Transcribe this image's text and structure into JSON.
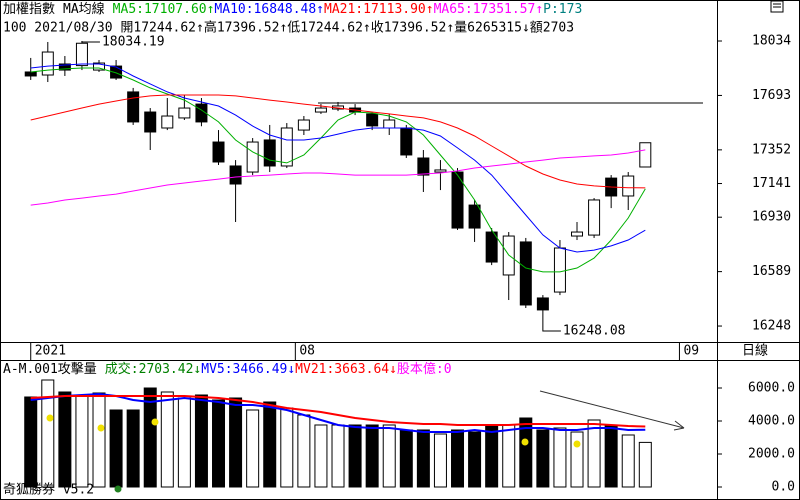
{
  "chart_data": [
    {
      "type": "candlestick",
      "title": "加權指數",
      "subtitle": "MA均線",
      "info": "100 2021/08/30 開17244.62↑高17396.52↑低17244.62↑收17396.52↑量6265315↓額2703",
      "extra_label": "P:173",
      "period_label": "日線",
      "open": [
        17840,
        17821,
        17890,
        17880,
        17852,
        17877,
        17715,
        17589,
        17489,
        17552,
        17639,
        17401,
        17251,
        17213,
        17414,
        17251,
        17476,
        17589,
        17608,
        17614,
        17577,
        17489,
        17489,
        17301,
        17213,
        17213,
        17006,
        16837,
        16568,
        16775,
        16424,
        16461,
        16812,
        16818,
        17175,
        17063,
        17244.62
      ],
      "high": [
        17928,
        18028,
        17940,
        18034.19,
        17915,
        17915,
        17740,
        17614,
        17677,
        17696,
        17677,
        17476,
        17288,
        17426,
        17508,
        17520,
        17564,
        17639,
        17652,
        17639,
        17589,
        17577,
        17508,
        17351,
        17288,
        17238,
        17038,
        16862,
        16837,
        16800,
        16442,
        16787,
        16900,
        17050,
        17194,
        17213,
        17396.52
      ],
      "low": [
        17790,
        17777,
        17815,
        17852,
        17840,
        17790,
        17508,
        17351,
        17476,
        17539,
        17500,
        17257,
        16900,
        17194,
        17213,
        17238,
        17445,
        17577,
        17595,
        17570,
        17476,
        17445,
        17301,
        17088,
        17100,
        16850,
        16775,
        16630,
        16411,
        16361,
        16248.08,
        16442,
        16787,
        16800,
        16987,
        16975,
        17244.62
      ],
      "close": [
        17815,
        17965,
        17852,
        18020,
        17896,
        17802,
        17527,
        17464,
        17564,
        17614,
        17527,
        17276,
        17138,
        17401,
        17251,
        17489,
        17539,
        17614,
        17627,
        17589,
        17502,
        17539,
        17320,
        17194,
        17226,
        16862,
        16862,
        16649,
        16812,
        16380,
        16349,
        16737,
        16837,
        17038,
        17063,
        17188,
        17396.52
      ],
      "series": [
        {
          "name": "MA5:17107.60↑",
          "color": "#00b000",
          "values": [
            17840,
            17852,
            17859,
            17865,
            17865,
            17834,
            17790,
            17740,
            17702,
            17664,
            17602,
            17527,
            17414,
            17339,
            17288,
            17270,
            17320,
            17426,
            17539,
            17589,
            17583,
            17564,
            17527,
            17445,
            17320,
            17194,
            17038,
            16850,
            16693,
            16612,
            16587,
            16587,
            16612,
            16674,
            16787,
            16925,
            17107.6
          ]
        },
        {
          "name": "MA10:16848.48↑",
          "color": "#0000ff",
          "values": [
            17865,
            17877,
            17884,
            17890,
            17890,
            17871,
            17815,
            17765,
            17715,
            17677,
            17652,
            17627,
            17570,
            17501,
            17445,
            17414,
            17414,
            17426,
            17451,
            17476,
            17489,
            17489,
            17489,
            17476,
            17439,
            17364,
            17288,
            17194,
            17069,
            16944,
            16819,
            16737,
            16712,
            16724,
            16750,
            16787,
            16848.48
          ]
        },
        {
          "name": "MA21:17113.90↑",
          "color": "#ff0000",
          "values": [
            17539,
            17564,
            17589,
            17614,
            17639,
            17658,
            17677,
            17690,
            17696,
            17696,
            17696,
            17696,
            17690,
            17677,
            17664,
            17652,
            17639,
            17627,
            17614,
            17602,
            17589,
            17577,
            17564,
            17552,
            17527,
            17489,
            17439,
            17376,
            17314,
            17251,
            17201,
            17163,
            17138,
            17126,
            17119,
            17115,
            17113.9
          ]
        },
        {
          "name": "MA65:17351.57↑",
          "color": "#ff00ff",
          "values": [
            17006,
            17019,
            17038,
            17050,
            17063,
            17075,
            17094,
            17113,
            17132,
            17144,
            17157,
            17169,
            17182,
            17188,
            17194,
            17201,
            17207,
            17207,
            17201,
            17194,
            17194,
            17194,
            17194,
            17201,
            17207,
            17220,
            17238,
            17251,
            17263,
            17276,
            17288,
            17301,
            17307,
            17314,
            17320,
            17332,
            17351.57
          ]
        }
      ],
      "annotations": [
        {
          "x": 3,
          "y": 18034.19
        },
        {
          "x": 30,
          "y": 16248.08
        }
      ],
      "ylim": [
        16148,
        18291
      ],
      "yticks": [
        16248,
        16589,
        16930,
        17141,
        17352,
        17693,
        18034
      ],
      "xlim": [
        -1.8,
        40.2
      ],
      "xticks": [
        {
          "value": 0,
          "label": "2021"
        },
        {
          "value": 15.5,
          "label": "08"
        },
        {
          "value": 38,
          "label": "09"
        }
      ]
    },
    {
      "type": "volume",
      "title": "A-M.001攻擊量",
      "extra_label": "股本億:0",
      "footer": "奇狐勝券 v5.2",
      "series": [
        {
          "name": "成交:2703.42↓",
          "color": "#008000",
          "values": [
            5455,
            6485,
            5758,
            5576,
            5697,
            4667,
            4667,
            6000,
            5758,
            5394,
            5576,
            5273,
            5394,
            4667,
            5152,
            4788,
            4364,
            3758,
            3758,
            3758,
            3758,
            3758,
            3455,
            3455,
            3212,
            3455,
            3333,
            3758,
            3758,
            4182,
            3455,
            3576,
            3333,
            4061,
            3758,
            3152,
            2703.42
          ]
        },
        {
          "name": "MV5:3466.49↓",
          "color": "#0000ff",
          "values": [
            5273,
            5394,
            5515,
            5576,
            5636,
            5515,
            5273,
            5152,
            5273,
            5394,
            5273,
            5152,
            4970,
            4970,
            4848,
            4667,
            4364,
            4061,
            3758,
            3636,
            3576,
            3576,
            3455,
            3333,
            3333,
            3333,
            3455,
            3333,
            3455,
            3576,
            3576,
            3455,
            3455,
            3576,
            3576,
            3455,
            3466.49
          ]
        },
        {
          "name": "MV21:3663.64↓",
          "color": "#ff0000",
          "values": [
            5394,
            5455,
            5515,
            5515,
            5515,
            5515,
            5515,
            5515,
            5515,
            5515,
            5455,
            5394,
            5273,
            5152,
            4970,
            4788,
            4667,
            4545,
            4364,
            4182,
            4061,
            3939,
            3879,
            3818,
            3818,
            3758,
            3758,
            3758,
            3758,
            3818,
            3818,
            3818,
            3818,
            3818,
            3758,
            3697,
            3663.64
          ]
        }
      ],
      "ylim": [
        -667,
        7576
      ],
      "yticks": [
        {
          "value": 0,
          "label": "0.0"
        },
        {
          "value": 2000,
          "label": "2000.0"
        },
        {
          "value": 4000,
          "label": "4000.0"
        },
        {
          "value": 6000,
          "label": "6000.0"
        }
      ]
    }
  ]
}
